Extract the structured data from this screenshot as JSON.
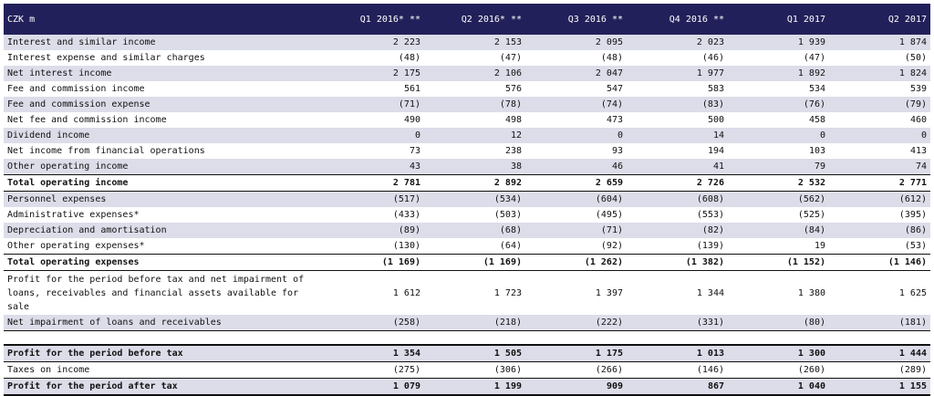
{
  "header": {
    "label": "CZK m",
    "columns": [
      "Q1 2016* **",
      "Q2 2016* **",
      "Q3 2016 **",
      "Q4 2016 **",
      "Q1 2017",
      "Q2 2017"
    ]
  },
  "rows": [
    {
      "label": "Interest and similar income",
      "values": [
        "2 223",
        "2 153",
        "2 095",
        "2 023",
        "1 939",
        "1 874"
      ],
      "style": "alt"
    },
    {
      "label": "Interest expense and similar charges",
      "values": [
        "(48)",
        "(47)",
        "(48)",
        "(46)",
        "(47)",
        "(50)"
      ],
      "style": "plain"
    },
    {
      "label": "Net interest income",
      "values": [
        "2 175",
        "2 106",
        "2 047",
        "1 977",
        "1 892",
        "1 824"
      ],
      "style": "alt"
    },
    {
      "label": "Fee and commission income",
      "values": [
        "561",
        "576",
        "547",
        "583",
        "534",
        "539"
      ],
      "style": "plain"
    },
    {
      "label": "Fee and commission expense",
      "values": [
        "(71)",
        "(78)",
        "(74)",
        "(83)",
        "(76)",
        "(79)"
      ],
      "style": "alt"
    },
    {
      "label": "Net fee and commission income",
      "values": [
        "490",
        "498",
        "473",
        "500",
        "458",
        "460"
      ],
      "style": "plain"
    },
    {
      "label": "Dividend income",
      "values": [
        "0",
        "12",
        "0",
        "14",
        "0",
        "0"
      ],
      "style": "alt"
    },
    {
      "label": "Net income from financial operations",
      "values": [
        "73",
        "238",
        "93",
        "194",
        "103",
        "413"
      ],
      "style": "plain"
    },
    {
      "label": "Other operating income",
      "values": [
        "43",
        "38",
        "46",
        "41",
        "79",
        "74"
      ],
      "style": "alt"
    },
    {
      "label": "Total operating income",
      "values": [
        "2 781",
        "2 892",
        "2 659",
        "2 726",
        "2 532",
        "2 771"
      ],
      "style": "bold"
    },
    {
      "label": "Personnel expenses",
      "values": [
        "(517)",
        "(534)",
        "(604)",
        "(608)",
        "(562)",
        "(612)"
      ],
      "style": "alt"
    },
    {
      "label": "Administrative expenses*",
      "values": [
        "(433)",
        "(503)",
        "(495)",
        "(553)",
        "(525)",
        "(395)"
      ],
      "style": "plain"
    },
    {
      "label": "Depreciation and amortisation",
      "values": [
        "(89)",
        "(68)",
        "(71)",
        "(82)",
        "(84)",
        "(86)"
      ],
      "style": "alt"
    },
    {
      "label": "Other operating expenses*",
      "values": [
        "(130)",
        "(64)",
        "(92)",
        "(139)",
        "19",
        "(53)"
      ],
      "style": "plain"
    },
    {
      "label": "Total operating expenses",
      "values": [
        "(1 169)",
        "(1 169)",
        "(1 262)",
        "(1 382)",
        "(1 152)",
        "(1 146)"
      ],
      "style": "bold"
    },
    {
      "label": "Profit for the period before tax and net impairment of loans, receivables and financial assets available for sale",
      "values": [
        "1 612",
        "1 723",
        "1 397",
        "1 344",
        "1 380",
        "1 625"
      ],
      "style": "tall"
    },
    {
      "label": "Net impairment of loans and receivables",
      "values": [
        "(258)",
        "(218)",
        "(222)",
        "(331)",
        "(80)",
        "(181)"
      ],
      "style": "alt-underline"
    },
    {
      "label": "",
      "values": [
        "",
        "",
        "",
        "",
        "",
        ""
      ],
      "style": "spacer"
    },
    {
      "label": "Profit for the period before tax",
      "values": [
        "1 354",
        "1 505",
        "1 175",
        "1 013",
        "1 300",
        "1 444"
      ],
      "style": "alt-bold-top"
    },
    {
      "label": "Taxes on income",
      "values": [
        "(275)",
        "(306)",
        "(266)",
        "(146)",
        "(260)",
        "(289)"
      ],
      "style": "plain"
    },
    {
      "label": "Profit for the period after tax",
      "values": [
        "1 079",
        "1 199",
        "909",
        "867",
        "1 040",
        "1 155"
      ],
      "style": "alt-bold-last"
    }
  ]
}
